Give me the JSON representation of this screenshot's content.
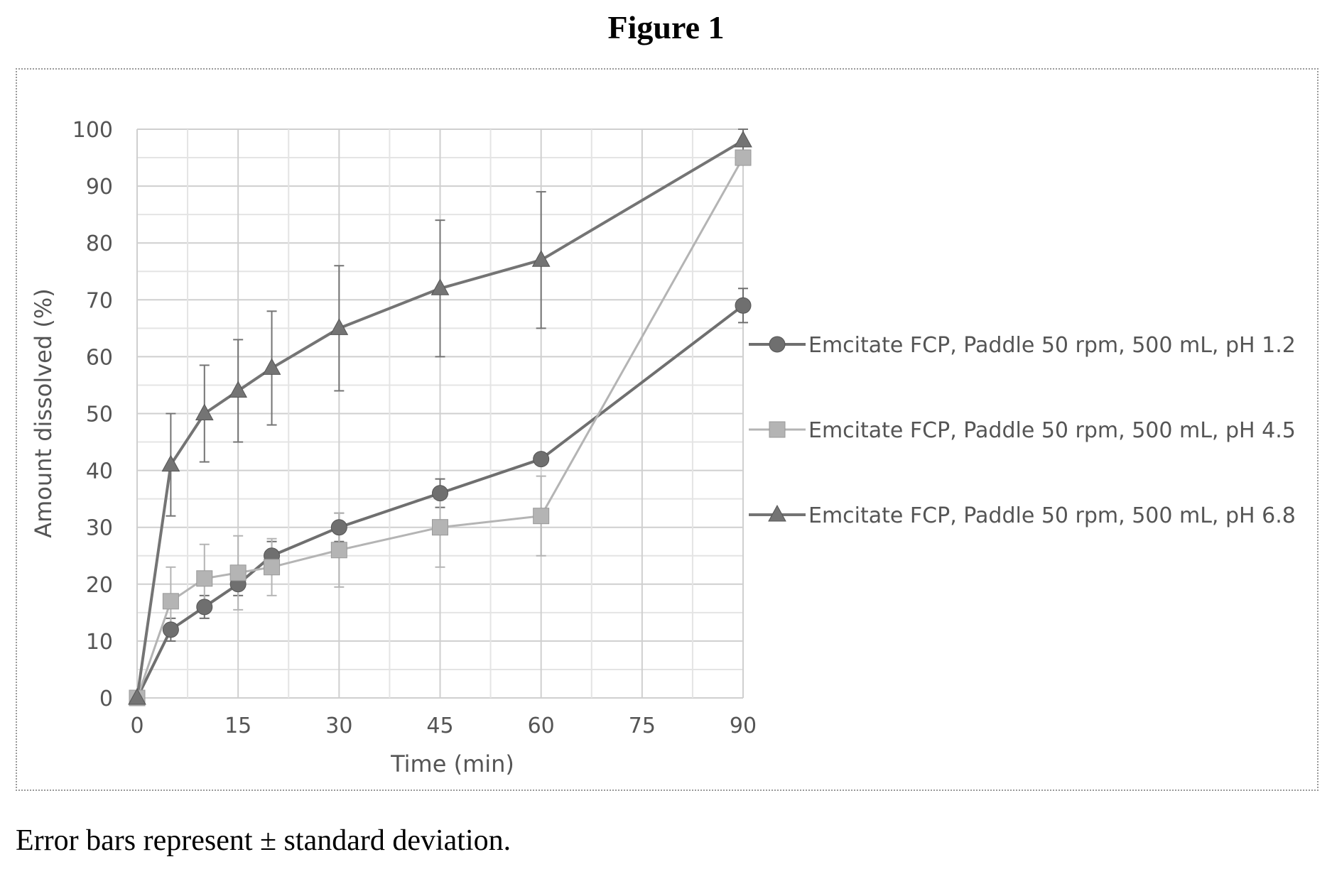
{
  "figure_title": "Figure 1",
  "caption": "Error bars represent ± standard deviation.",
  "chart_data": {
    "type": "line",
    "xlabel": "Time (min)",
    "ylabel": "Amount  dissolved (%)",
    "x_ticks": [
      0,
      15,
      30,
      45,
      60,
      75,
      90
    ],
    "x_range": [
      0,
      90
    ],
    "y_ticks": [
      0,
      10,
      20,
      30,
      40,
      50,
      60,
      70,
      80,
      90,
      100
    ],
    "ylim": [
      0,
      100
    ],
    "grid": true,
    "legend_position": "right",
    "x": [
      0,
      5,
      10,
      15,
      20,
      30,
      45,
      60,
      90
    ],
    "series": [
      {
        "name": "Emcitate FCP, Paddle 50 rpm, 500 mL, pH 1.2",
        "marker": "circle",
        "color": "#6f6f6f",
        "values": [
          0,
          12,
          16,
          20,
          25,
          30,
          36,
          42,
          69
        ],
        "errors": [
          0,
          2,
          2,
          2,
          2.5,
          2.5,
          2.5,
          0,
          3
        ]
      },
      {
        "name": "Emcitate FCP, Paddle 50 rpm, 500 mL, pH 4.5",
        "marker": "square",
        "color": "#b4b4b4",
        "values": [
          0,
          17,
          21,
          22,
          23,
          26,
          30,
          32,
          95
        ],
        "errors": [
          0,
          6,
          6,
          6.5,
          5,
          6.5,
          7,
          7,
          0
        ]
      },
      {
        "name": "Emcitate FCP, Paddle 50 rpm, 500 mL, pH 6.8",
        "marker": "triangle",
        "color": "#747474",
        "values": [
          0,
          41,
          50,
          54,
          58,
          65,
          72,
          77,
          98
        ],
        "errors": [
          0,
          9,
          8.5,
          9,
          10,
          11,
          12,
          12,
          2
        ]
      }
    ]
  }
}
